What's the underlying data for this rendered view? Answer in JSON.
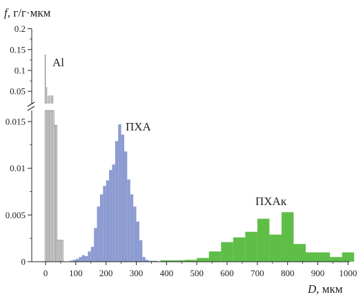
{
  "chart_data": {
    "type": "bar",
    "ylabel_var": "f",
    "ylabel_unit": ", г/г·мкм",
    "xlabel_var": "D",
    "xlabel_unit": ", мкм",
    "xlim": [
      -50,
      1000
    ],
    "x_ticks": [
      0,
      100,
      200,
      300,
      400,
      500,
      600,
      700,
      800,
      900,
      1000
    ],
    "ylim_lower": [
      0,
      0.017
    ],
    "y_ticks_lower": [
      "0",
      "0.005",
      "0.01",
      "0.015"
    ],
    "ylim_upper": [
      0.025,
      0.2
    ],
    "y_ticks_upper": [
      "0.05",
      "0.1",
      "0.15",
      "0.2"
    ],
    "grid": false,
    "colors": {
      "Al": "#d9d9d9",
      "PHA": "#8c9bd1",
      "PHAk": "#5fbe48",
      "axis": "#222222"
    },
    "series": [
      {
        "name": "Al",
        "label": "Al",
        "bin_width": 5,
        "bins": [
          {
            "x0": -2,
            "value": 0.138
          },
          {
            "x0": 3,
            "value": 0.06
          },
          {
            "x0": 8,
            "value": 0.04
          },
          {
            "x0": 13,
            "value": 0.04
          },
          {
            "x0": 18,
            "value": 0.04
          },
          {
            "x0": 23,
            "value": 0.04
          },
          {
            "x0": 28,
            "value": 0.0146
          },
          {
            "x0": 33,
            "value": 0.0146
          },
          {
            "x0": 38,
            "value": 0.0023
          },
          {
            "x0": 43,
            "value": 0.0023
          },
          {
            "x0": 48,
            "value": 0.0023
          },
          {
            "x0": 53,
            "value": 0.0023
          }
        ]
      },
      {
        "name": "PHA",
        "label": "ПХА",
        "bin_width": 10,
        "bins": [
          {
            "x0": 80,
            "value": 0.0001
          },
          {
            "x0": 90,
            "value": 0.0002
          },
          {
            "x0": 100,
            "value": 0.0003
          },
          {
            "x0": 110,
            "value": 0.0005
          },
          {
            "x0": 120,
            "value": 0.0007
          },
          {
            "x0": 130,
            "value": 0.0006
          },
          {
            "x0": 140,
            "value": 0.0011
          },
          {
            "x0": 150,
            "value": 0.0016
          },
          {
            "x0": 160,
            "value": 0.0036
          },
          {
            "x0": 170,
            "value": 0.0059
          },
          {
            "x0": 180,
            "value": 0.0072
          },
          {
            "x0": 190,
            "value": 0.0081
          },
          {
            "x0": 200,
            "value": 0.0087
          },
          {
            "x0": 210,
            "value": 0.0098
          },
          {
            "x0": 220,
            "value": 0.0104
          },
          {
            "x0": 230,
            "value": 0.0129
          },
          {
            "x0": 240,
            "value": 0.0147
          },
          {
            "x0": 250,
            "value": 0.0136
          },
          {
            "x0": 260,
            "value": 0.0118
          },
          {
            "x0": 270,
            "value": 0.0088
          },
          {
            "x0": 280,
            "value": 0.0072
          },
          {
            "x0": 290,
            "value": 0.0059
          },
          {
            "x0": 300,
            "value": 0.0043
          },
          {
            "x0": 310,
            "value": 0.0023
          },
          {
            "x0": 320,
            "value": 0.0005
          },
          {
            "x0": 330,
            "value": 0.0002
          },
          {
            "x0": 340,
            "value": 0.0001
          },
          {
            "x0": 350,
            "value": 0.0001
          },
          {
            "x0": 360,
            "value": 0.0001
          }
        ]
      },
      {
        "name": "PHAk",
        "label": "ПХАк",
        "bin_width": 40,
        "bins": [
          {
            "x0": 380,
            "value": 0.00015
          },
          {
            "x0": 420,
            "value": 0.00015
          },
          {
            "x0": 460,
            "value": 0.0002
          },
          {
            "x0": 500,
            "value": 0.0004
          },
          {
            "x0": 540,
            "value": 0.0011
          },
          {
            "x0": 580,
            "value": 0.0021
          },
          {
            "x0": 620,
            "value": 0.0026
          },
          {
            "x0": 660,
            "value": 0.0032
          },
          {
            "x0": 700,
            "value": 0.0046
          },
          {
            "x0": 740,
            "value": 0.0029
          },
          {
            "x0": 780,
            "value": 0.0053
          },
          {
            "x0": 820,
            "value": 0.0019
          },
          {
            "x0": 860,
            "value": 0.001
          },
          {
            "x0": 900,
            "value": 0.001
          },
          {
            "x0": 940,
            "value": 0.0005
          },
          {
            "x0": 980,
            "value": 0.001
          }
        ]
      }
    ]
  }
}
